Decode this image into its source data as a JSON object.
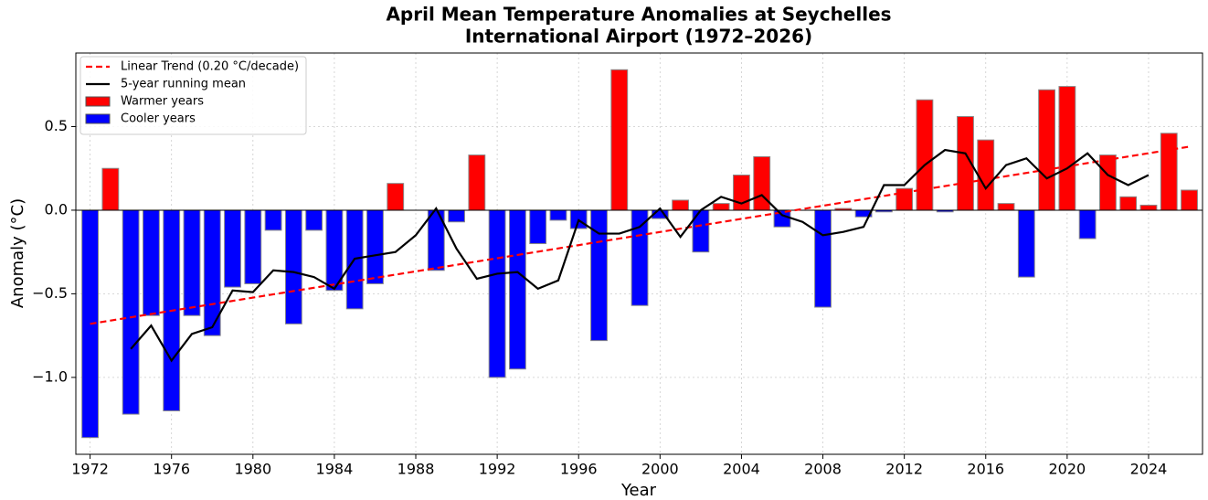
{
  "chart_data": {
    "type": "bar",
    "title": [
      "April Mean Temperature Anomalies at Seychelles",
      "International Airport (1972–2026)"
    ],
    "x_label": "Year",
    "y_label": "Anomaly (°C)",
    "x": [
      1972,
      1973,
      1974,
      1975,
      1976,
      1977,
      1978,
      1979,
      1980,
      1981,
      1982,
      1983,
      1984,
      1985,
      1986,
      1987,
      1988,
      1989,
      1990,
      1991,
      1992,
      1993,
      1994,
      1995,
      1996,
      1997,
      1998,
      1999,
      2000,
      2001,
      2002,
      2003,
      2004,
      2005,
      2006,
      2007,
      2008,
      2009,
      2010,
      2011,
      2012,
      2013,
      2014,
      2015,
      2016,
      2017,
      2018,
      2019,
      2020,
      2021,
      2022,
      2023,
      2024,
      2025,
      2026
    ],
    "series": [
      {
        "name": "Warmer years",
        "color": "#ff0000",
        "values": [
          null,
          0.25,
          null,
          null,
          null,
          null,
          null,
          null,
          null,
          null,
          null,
          null,
          null,
          null,
          null,
          0.16,
          0.0,
          null,
          null,
          0.33,
          null,
          null,
          null,
          null,
          null,
          null,
          0.84,
          null,
          null,
          0.06,
          null,
          0.04,
          0.21,
          0.32,
          null,
          0.0,
          null,
          0.01,
          null,
          null,
          0.13,
          0.66,
          null,
          0.56,
          0.42,
          0.04,
          null,
          0.72,
          0.74,
          null,
          0.33,
          0.08,
          0.03,
          0.46,
          0.12
        ]
      },
      {
        "name": "Cooler years",
        "color": "#0000ff",
        "values": [
          -1.36,
          null,
          -1.22,
          -0.63,
          -1.2,
          -0.63,
          -0.75,
          -0.46,
          -0.44,
          -0.12,
          -0.68,
          -0.12,
          -0.48,
          -0.59,
          -0.44,
          null,
          null,
          -0.36,
          -0.07,
          null,
          -1.0,
          -0.95,
          -0.2,
          -0.06,
          -0.11,
          -0.78,
          null,
          -0.57,
          -0.05,
          null,
          -0.25,
          null,
          null,
          null,
          -0.1,
          null,
          -0.58,
          null,
          -0.04,
          -0.01,
          null,
          null,
          -0.01,
          null,
          null,
          null,
          -0.4,
          null,
          null,
          -0.17,
          null,
          null,
          null,
          null,
          null
        ]
      }
    ],
    "lines": [
      {
        "name": "Linear Trend (0.20 °C/decade)",
        "color": "#ff0000",
        "dashed": true,
        "x": [
          1972,
          2026
        ],
        "values": [
          -0.68,
          0.38
        ]
      },
      {
        "name": "5-year running mean",
        "color": "#000000",
        "dashed": false,
        "x": [
          1974,
          1975,
          1976,
          1977,
          1978,
          1979,
          1980,
          1981,
          1982,
          1983,
          1984,
          1985,
          1986,
          1987,
          1988,
          1989,
          1990,
          1991,
          1992,
          1993,
          1994,
          1995,
          1996,
          1997,
          1998,
          1999,
          2000,
          2001,
          2002,
          2003,
          2004,
          2005,
          2006,
          2007,
          2008,
          2009,
          2010,
          2011,
          2012,
          2013,
          2014,
          2015,
          2016,
          2017,
          2018,
          2019,
          2020,
          2021,
          2022,
          2023,
          2024
        ],
        "values": [
          -0.83,
          -0.69,
          -0.9,
          -0.74,
          -0.7,
          -0.48,
          -0.49,
          -0.36,
          -0.37,
          -0.4,
          -0.47,
          -0.29,
          -0.27,
          -0.25,
          -0.15,
          0.01,
          -0.23,
          -0.41,
          -0.38,
          -0.37,
          -0.47,
          -0.42,
          -0.06,
          -0.14,
          -0.14,
          -0.1,
          0.01,
          -0.16,
          0.0,
          0.08,
          0.04,
          0.09,
          -0.03,
          -0.07,
          -0.15,
          -0.13,
          -0.1,
          0.15,
          0.15,
          0.27,
          0.36,
          0.34,
          0.13,
          0.27,
          0.31,
          0.19,
          0.25,
          0.34,
          0.21,
          0.15,
          0.21
        ]
      }
    ],
    "xlim": [
      1971.3,
      2026.65
    ],
    "xticks": [
      1972,
      1976,
      1980,
      1984,
      1988,
      1992,
      1996,
      2000,
      2004,
      2008,
      2012,
      2016,
      2020,
      2024
    ],
    "ylim": [
      -1.46,
      0.94
    ],
    "yticks": [
      {
        "value": -1.0,
        "label": "−1.0"
      },
      {
        "value": -0.5,
        "label": "−0.5"
      },
      {
        "value": 0,
        "label": "0.0"
      },
      0.5
    ],
    "grid": true,
    "legend": "upper left"
  }
}
